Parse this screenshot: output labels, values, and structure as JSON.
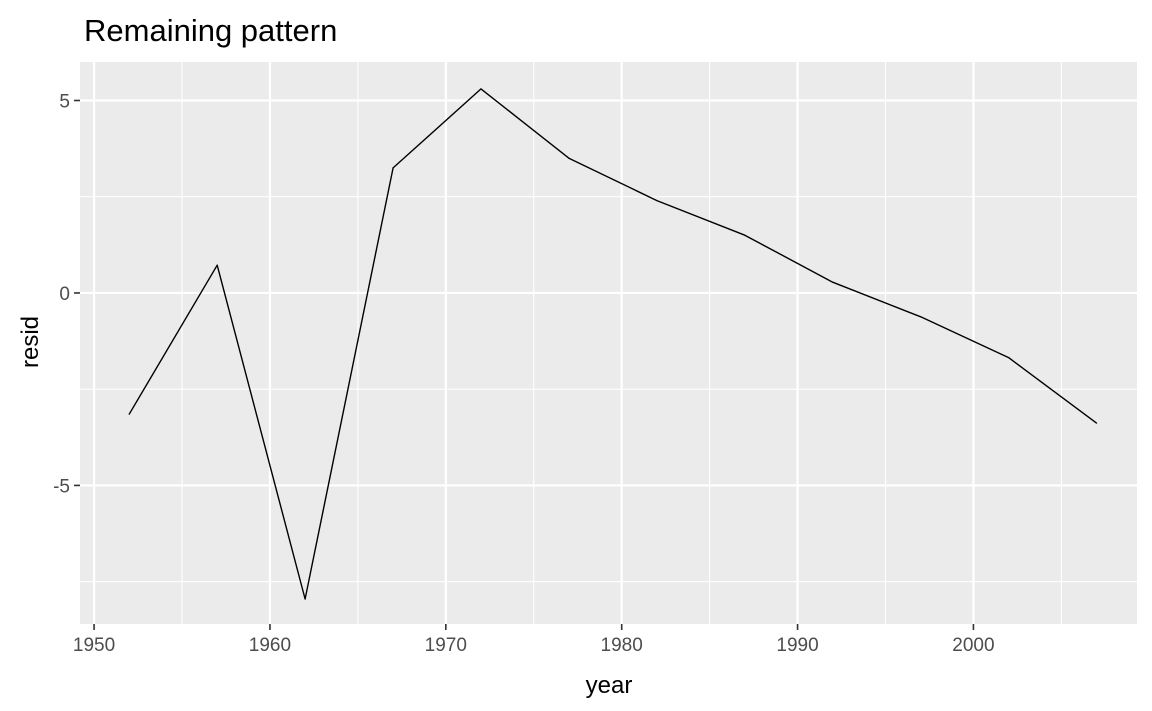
{
  "chart_data": {
    "type": "line",
    "title": "Remaining pattern",
    "xlabel": "year",
    "ylabel": "resid",
    "xlim": [
      1949.2,
      2009.3
    ],
    "ylim": [
      -8.6,
      6.0
    ],
    "x_ticks": [
      1950,
      1960,
      1970,
      1980,
      1990,
      2000
    ],
    "x_minor_ticks": [
      1955,
      1965,
      1975,
      1985,
      1995,
      2005
    ],
    "y_ticks": [
      -5,
      0,
      5
    ],
    "y_tick_labels": [
      "-5",
      "0",
      "5"
    ],
    "y_minor_ticks": [
      -7.5,
      -2.5,
      2.5
    ],
    "grid": true,
    "background": "#ebebeb",
    "line_color": "#000000",
    "x": [
      1952,
      1957,
      1962,
      1967,
      1972,
      1977,
      1982,
      1987,
      1992,
      1997,
      2002,
      2007
    ],
    "y": [
      -3.15,
      0.72,
      -7.95,
      3.25,
      5.3,
      3.5,
      2.4,
      1.5,
      0.28,
      -0.62,
      -1.68,
      -3.38
    ]
  }
}
